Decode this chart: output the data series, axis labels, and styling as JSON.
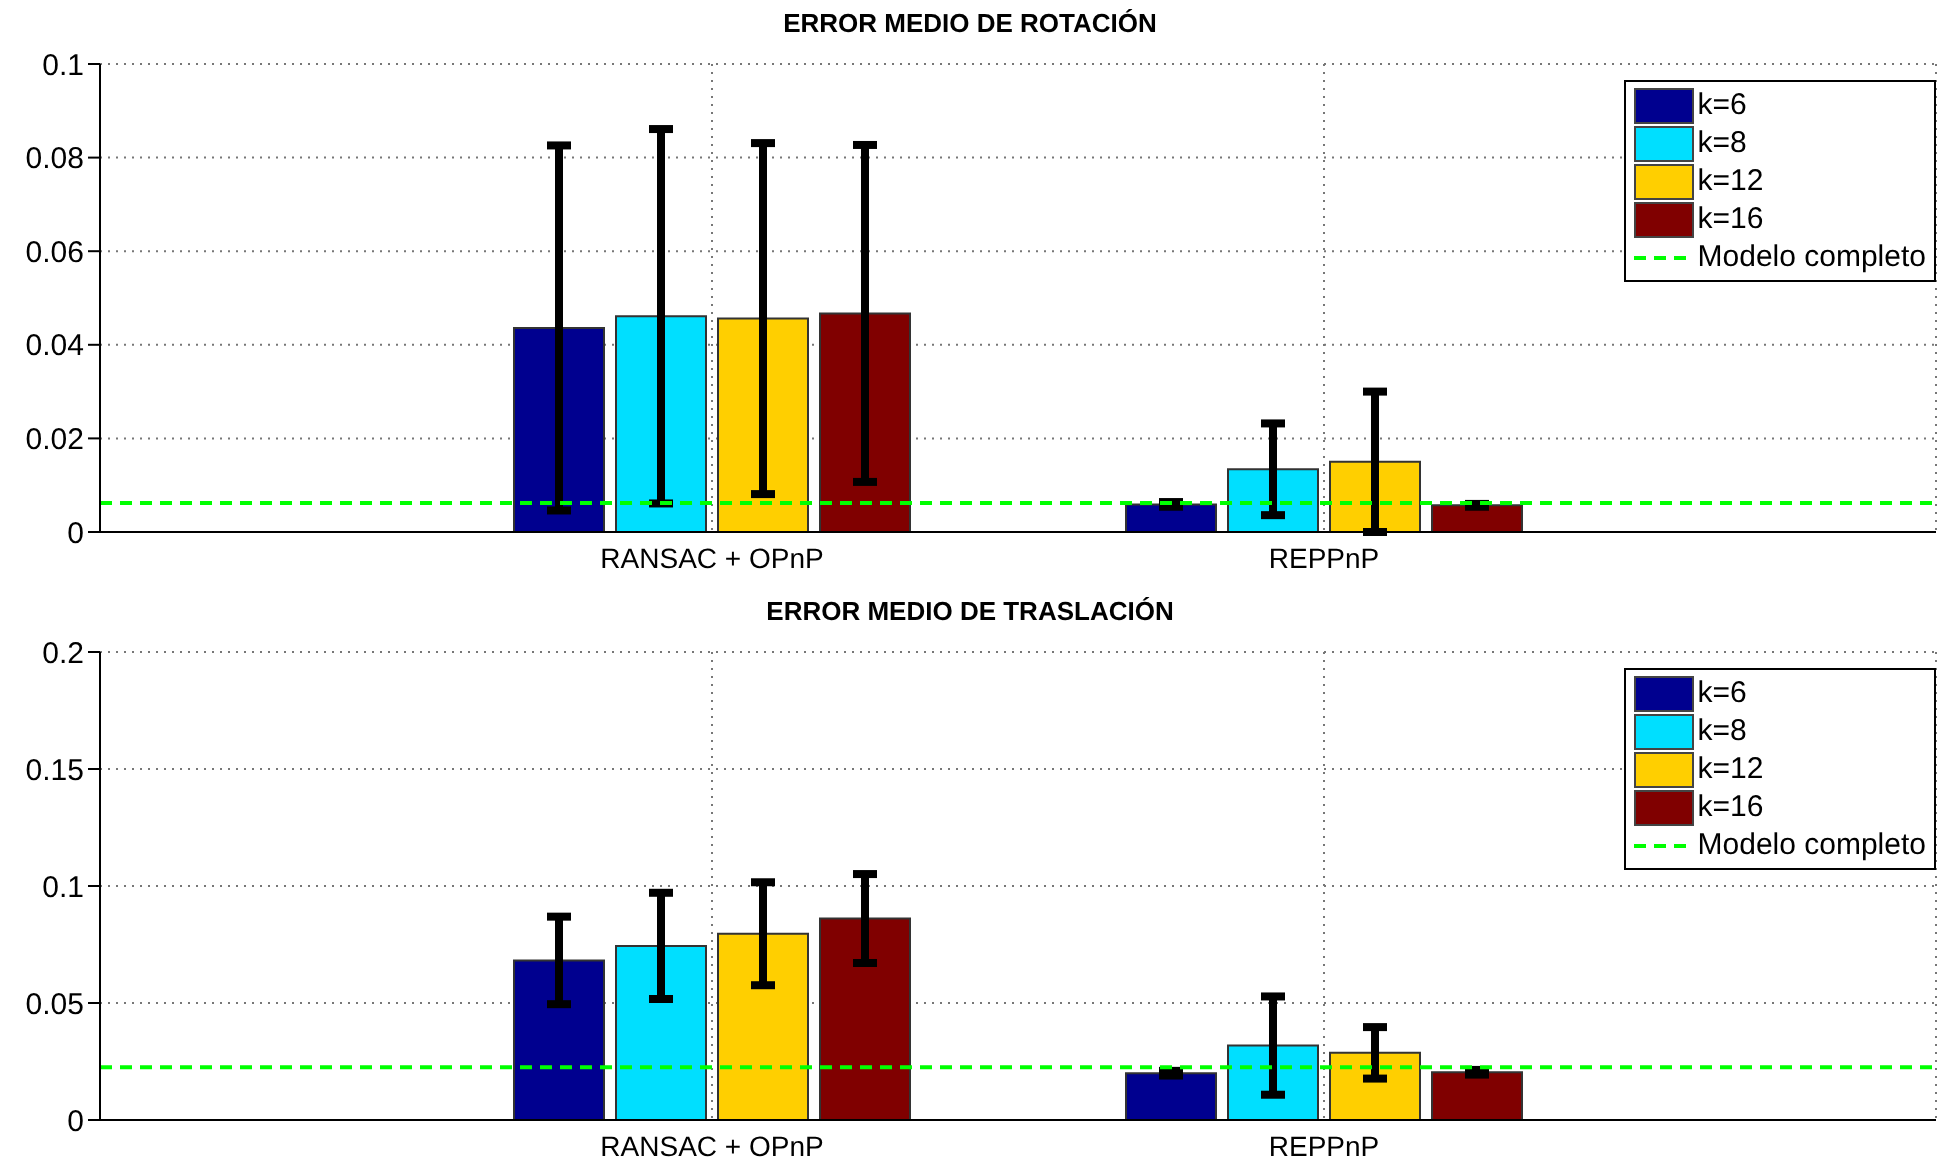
{
  "chart_data": [
    {
      "type": "bar",
      "title": "ERROR MEDIO DE ROTACIÓN",
      "categories": [
        "RANSAC + OPnP",
        "REPPnP"
      ],
      "series": [
        {
          "name": "k=6",
          "color": "#00008f",
          "values": [
            0.0436,
            0.0059
          ],
          "errors": [
            0.039,
            0.0005
          ]
        },
        {
          "name": "k=8",
          "color": "#00dfff",
          "values": [
            0.0461,
            0.0134
          ],
          "errors": [
            0.04,
            0.0098
          ]
        },
        {
          "name": "k=12",
          "color": "#ffcf00",
          "values": [
            0.0456,
            0.015
          ],
          "errors": [
            0.0375,
            0.015
          ]
        },
        {
          "name": "k=16",
          "color": "#800000",
          "values": [
            0.0467,
            0.0057
          ],
          "errors": [
            0.036,
            0.0003
          ]
        }
      ],
      "ylim": [
        0,
        0.1
      ],
      "yticks": [
        0,
        0.02,
        0.04,
        0.06,
        0.08,
        0.1
      ],
      "grid": true,
      "legend": "top right",
      "ref_lines": [
        {
          "axis": "y",
          "value": 0.0062,
          "label": "Modelo completo",
          "color": "#00ff00",
          "line_style": "dashed"
        }
      ]
    },
    {
      "type": "bar",
      "title": "ERROR MEDIO DE TRASLACIÓN",
      "categories": [
        "RANSAC + OPnP",
        "REPPnP"
      ],
      "series": [
        {
          "name": "k=6",
          "color": "#00008f",
          "values": [
            0.0682,
            0.02
          ],
          "errors": [
            0.0187,
            0.001
          ]
        },
        {
          "name": "k=8",
          "color": "#00dfff",
          "values": [
            0.0744,
            0.0318
          ],
          "errors": [
            0.0227,
            0.021
          ]
        },
        {
          "name": "k=12",
          "color": "#ffcf00",
          "values": [
            0.0796,
            0.0287
          ],
          "errors": [
            0.022,
            0.011
          ]
        },
        {
          "name": "k=16",
          "color": "#800000",
          "values": [
            0.0861,
            0.0204
          ],
          "errors": [
            0.019,
            0.001
          ]
        }
      ],
      "ylim": [
        0,
        0.2
      ],
      "yticks": [
        0,
        0.05,
        0.1,
        0.15,
        0.2
      ],
      "grid": true,
      "legend": "top right",
      "ref_lines": [
        {
          "axis": "y",
          "value": 0.0225,
          "label": "Modelo completo",
          "color": "#00ff00",
          "line_style": "dashed"
        }
      ]
    }
  ]
}
